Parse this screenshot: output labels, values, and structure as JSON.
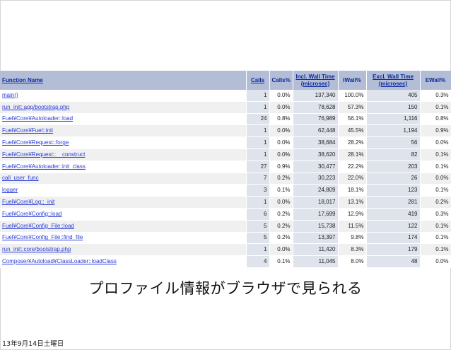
{
  "columns": {
    "function_name": "Function Name",
    "calls": "Calls",
    "calls_pct": "Calls%",
    "incl_wall_time_line1": "Incl. Wall Time",
    "incl_wall_time_line2": "(microsec)",
    "iwall_pct": "IWall%",
    "excl_wall_time_line1": "Excl. Wall Time",
    "excl_wall_time_line2": "(microsec)",
    "ewall_pct": "EWall%"
  },
  "rows": [
    {
      "fn": "main()",
      "calls": "1",
      "calls_pct": "0.0%",
      "incl": "137,340",
      "iwall": "100.0%",
      "excl": "405",
      "ewall": "0.3%"
    },
    {
      "fn": "run_init::app/bootstrap.php",
      "calls": "1",
      "calls_pct": "0.0%",
      "incl": "78,628",
      "iwall": "57.3%",
      "excl": "150",
      "ewall": "0.1%"
    },
    {
      "fn": "Fuel¥Core¥Autoloader::load",
      "calls": "24",
      "calls_pct": "0.8%",
      "incl": "76,989",
      "iwall": "56.1%",
      "excl": "1,116",
      "ewall": "0.8%"
    },
    {
      "fn": "Fuel¥Core¥Fuel::init",
      "calls": "1",
      "calls_pct": "0.0%",
      "incl": "62,448",
      "iwall": "45.5%",
      "excl": "1,194",
      "ewall": "0.9%"
    },
    {
      "fn": "Fuel¥Core¥Request::forge",
      "calls": "1",
      "calls_pct": "0.0%",
      "incl": "38,684",
      "iwall": "28.2%",
      "excl": "56",
      "ewall": "0.0%"
    },
    {
      "fn": "Fuel¥Core¥Request::__construct",
      "calls": "1",
      "calls_pct": "0.0%",
      "incl": "38,620",
      "iwall": "28.1%",
      "excl": "82",
      "ewall": "0.1%"
    },
    {
      "fn": "Fuel¥Core¥Autoloader::init_class",
      "calls": "27",
      "calls_pct": "0.9%",
      "incl": "30,477",
      "iwall": "22.2%",
      "excl": "203",
      "ewall": "0.1%"
    },
    {
      "fn": "call_user_func",
      "calls": "7",
      "calls_pct": "0.2%",
      "incl": "30,223",
      "iwall": "22.0%",
      "excl": "26",
      "ewall": "0.0%"
    },
    {
      "fn": "logger",
      "calls": "3",
      "calls_pct": "0.1%",
      "incl": "24,809",
      "iwall": "18.1%",
      "excl": "123",
      "ewall": "0.1%"
    },
    {
      "fn": "Fuel¥Core¥Log::_init",
      "calls": "1",
      "calls_pct": "0.0%",
      "incl": "18,017",
      "iwall": "13.1%",
      "excl": "281",
      "ewall": "0.2%"
    },
    {
      "fn": "Fuel¥Core¥Config::load",
      "calls": "6",
      "calls_pct": "0.2%",
      "incl": "17,699",
      "iwall": "12.9%",
      "excl": "419",
      "ewall": "0.3%"
    },
    {
      "fn": "Fuel¥Core¥Config_File::load",
      "calls": "5",
      "calls_pct": "0.2%",
      "incl": "15,738",
      "iwall": "11.5%",
      "excl": "122",
      "ewall": "0.1%"
    },
    {
      "fn": "Fuel¥Core¥Config_File::find_file",
      "calls": "5",
      "calls_pct": "0.2%",
      "incl": "13,397",
      "iwall": "9.8%",
      "excl": "174",
      "ewall": "0.1%"
    },
    {
      "fn": "run_init::core/bootstrap.php",
      "calls": "1",
      "calls_pct": "0.0%",
      "incl": "11,420",
      "iwall": "8.3%",
      "excl": "179",
      "ewall": "0.1%"
    },
    {
      "fn": "Composer¥Autoload¥ClassLoader::loadClass",
      "calls": "4",
      "calls_pct": "0.1%",
      "incl": "11,045",
      "iwall": "8.0%",
      "excl": "48",
      "ewall": "0.0%"
    }
  ],
  "caption": "プロファイル情報がブラウザで見られる",
  "footer_date": "13年9月14日土曜日",
  "colors": {
    "header_bg": "#b3bdd6",
    "header_text": "#0b2a9e",
    "link": "#2a3dd6",
    "shaded_column": "#dfe3ec"
  }
}
